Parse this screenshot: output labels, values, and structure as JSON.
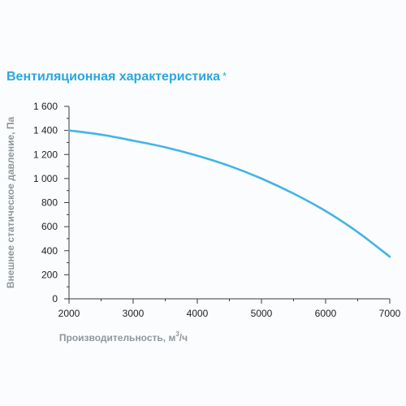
{
  "chart_data": {
    "type": "line",
    "title": "Вентиляционная характеристика",
    "title_marker": "*",
    "xlabel": "Производительность, м",
    "xlabel_superscript": "3",
    "xlabel_suffix": "/ч",
    "ylabel": "Внешнее статическое давление, Па",
    "xlim": [
      2000,
      7000
    ],
    "ylim": [
      0,
      1600
    ],
    "x_ticks": [
      "2000",
      "3000",
      "4000",
      "5000",
      "6000",
      "7000"
    ],
    "y_ticks": [
      "0",
      "200",
      "400",
      "600",
      "800",
      "1 000",
      "1 200",
      "1 400",
      "1 600"
    ],
    "grid": false,
    "color": "#42b4e6",
    "series": [
      {
        "x": [
          2000,
          2500,
          3000,
          3500,
          4000,
          4500,
          5000,
          5500,
          6000,
          6500,
          7000
        ],
        "values": [
          1400,
          1365,
          1315,
          1260,
          1190,
          1105,
          1000,
          875,
          730,
          555,
          350
        ]
      }
    ]
  }
}
